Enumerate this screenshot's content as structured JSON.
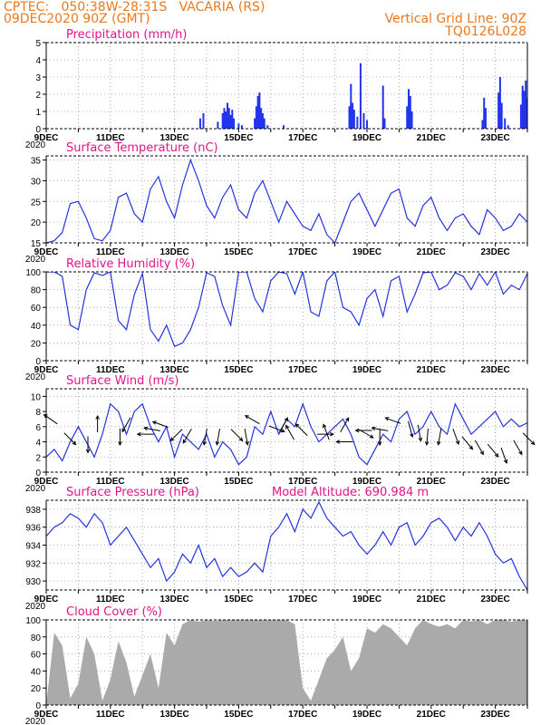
{
  "header": {
    "line1_left": "CPTEC:   050:38W-28:31S   VACARIA (RS)",
    "line2_left": "09DEC2020 90Z (GMT)",
    "line1_right": "Vertical Grid Line: 90Z",
    "line2_right": "TQ0126L028",
    "model_altitude": "Model Altitude: 690.984  m",
    "header_color": "#e8781e",
    "title_color": "#e0148c"
  },
  "x_axis": {
    "tick_labels": [
      "9DEC",
      "11DEC",
      "13DEC",
      "15DEC",
      "17DEC",
      "19DEC",
      "21DEC",
      "23DEC"
    ],
    "year_label": "2020",
    "days": [
      9,
      10,
      11,
      12,
      13,
      14,
      15,
      16,
      17,
      18,
      19,
      20,
      21,
      22,
      23,
      24
    ],
    "range_days": [
      9,
      24
    ]
  },
  "colors": {
    "line": "#2233dd",
    "bar": "#2233ee",
    "cloud": "#aaaaaa",
    "arrow": "#000000",
    "grid": "#999999"
  },
  "chart_data": [
    {
      "type": "bar",
      "title": "Precipitation (mm/h)",
      "ylim": [
        0,
        5
      ],
      "yticks": [
        0,
        1,
        2,
        3,
        4,
        5
      ],
      "grid": true,
      "x": [
        13.8,
        13.9,
        14.35,
        14.5,
        14.55,
        14.6,
        14.65,
        14.7,
        14.75,
        14.8,
        14.85,
        15.0,
        15.1,
        15.5,
        15.55,
        15.6,
        15.65,
        15.7,
        15.75,
        15.8,
        15.9,
        16.4,
        18.45,
        18.5,
        18.55,
        18.6,
        18.7,
        18.8,
        18.9,
        19.0,
        19.5,
        19.55,
        20.25,
        20.3,
        20.35,
        20.4,
        22.6,
        22.65,
        22.7,
        23.1,
        23.15,
        23.2,
        23.3,
        23.4,
        23.8,
        23.85,
        23.9,
        23.95,
        24.0,
        24.05
      ],
      "values": [
        0.6,
        0.9,
        0.4,
        0.9,
        1.2,
        1.0,
        1.5,
        1.2,
        0.8,
        1.1,
        0.6,
        0.3,
        0.2,
        0.6,
        1.3,
        1.9,
        2.1,
        1.2,
        0.9,
        0.6,
        0.2,
        0.2,
        1.3,
        2.6,
        1.5,
        1.1,
        0.7,
        3.8,
        0.9,
        0.5,
        2.5,
        0.6,
        1.3,
        2.3,
        1.9,
        1.0,
        0.5,
        1.8,
        1.2,
        2.1,
        3.0,
        1.5,
        0.6,
        0.2,
        1.4,
        2.5,
        2.2,
        2.8,
        1.8,
        1.0
      ]
    },
    {
      "type": "line",
      "title": "Surface Temperature (nC)",
      "ylim": [
        15,
        36
      ],
      "yticks": [
        15,
        20,
        25,
        30,
        35
      ],
      "grid": true,
      "x": [
        9,
        9.25,
        9.5,
        9.75,
        10,
        10.25,
        10.5,
        10.75,
        11,
        11.25,
        11.5,
        11.75,
        12,
        12.25,
        12.5,
        12.75,
        13,
        13.25,
        13.5,
        13.75,
        14,
        14.25,
        14.5,
        14.75,
        15,
        15.25,
        15.5,
        15.75,
        16,
        16.25,
        16.5,
        16.75,
        17,
        17.25,
        17.5,
        17.75,
        18,
        18.25,
        18.5,
        18.75,
        19,
        19.25,
        19.5,
        19.75,
        20,
        20.25,
        20.5,
        20.75,
        21,
        21.25,
        21.5,
        21.75,
        22,
        22.25,
        22.5,
        22.75,
        23,
        23.25,
        23.5,
        23.75,
        24
      ],
      "values": [
        15,
        15.5,
        17.5,
        24.5,
        25,
        21,
        16,
        15.5,
        18,
        26,
        27,
        22,
        20,
        28,
        31,
        25,
        21,
        29,
        35,
        30,
        24,
        21,
        26,
        29,
        23,
        21,
        27,
        30,
        25,
        20,
        25,
        22,
        19,
        18,
        22,
        17,
        15,
        20,
        25,
        27,
        23,
        19,
        23,
        27,
        28,
        21,
        19,
        24,
        26,
        21,
        18,
        21,
        22,
        19,
        17,
        23,
        21,
        18,
        19,
        22,
        20
      ]
    },
    {
      "type": "line",
      "title": "Relative Humidity (%)",
      "ylim": [
        0,
        100
      ],
      "yticks": [
        0,
        20,
        40,
        60,
        80,
        100
      ],
      "grid": true,
      "x": [
        9,
        9.25,
        9.5,
        9.75,
        10,
        10.25,
        10.5,
        10.75,
        11,
        11.25,
        11.5,
        11.75,
        12,
        12.25,
        12.5,
        12.75,
        13,
        13.25,
        13.5,
        13.75,
        14,
        14.25,
        14.5,
        14.75,
        15,
        15.25,
        15.5,
        15.75,
        16,
        16.25,
        16.5,
        16.75,
        17,
        17.25,
        17.5,
        17.75,
        18,
        18.25,
        18.5,
        18.75,
        19,
        19.25,
        19.5,
        19.75,
        20,
        20.25,
        20.5,
        20.75,
        21,
        21.25,
        21.5,
        21.75,
        22,
        22.25,
        22.5,
        22.75,
        23,
        23.25,
        23.5,
        23.75,
        24
      ],
      "values": [
        100,
        100,
        95,
        40,
        35,
        80,
        99,
        96,
        100,
        45,
        35,
        75,
        98,
        35,
        22,
        40,
        16,
        20,
        35,
        60,
        99,
        95,
        62,
        40,
        100,
        100,
        70,
        55,
        90,
        100,
        98,
        75,
        100,
        55,
        50,
        90,
        100,
        60,
        55,
        40,
        70,
        80,
        50,
        90,
        95,
        55,
        75,
        99,
        100,
        80,
        85,
        99,
        95,
        80,
        98,
        85,
        100,
        75,
        85,
        80,
        98
      ]
    },
    {
      "type": "line",
      "title": "Surface Wind (m/s)",
      "ylim": [
        0,
        11
      ],
      "yticks": [
        0,
        2,
        4,
        6,
        8,
        10
      ],
      "grid": true,
      "x": [
        9,
        9.25,
        9.5,
        9.75,
        10,
        10.25,
        10.5,
        10.75,
        11,
        11.25,
        11.5,
        11.75,
        12,
        12.25,
        12.5,
        12.75,
        13,
        13.25,
        13.5,
        13.75,
        14,
        14.25,
        14.5,
        14.75,
        15,
        15.25,
        15.5,
        15.75,
        16,
        16.25,
        16.5,
        16.75,
        17,
        17.25,
        17.5,
        17.75,
        18,
        18.25,
        18.5,
        18.75,
        19,
        19.25,
        19.5,
        19.75,
        20,
        20.25,
        20.5,
        20.75,
        21,
        21.25,
        21.5,
        21.75,
        22,
        22.25,
        22.5,
        22.75,
        23,
        23.25,
        23.5,
        23.75,
        24
      ],
      "values": [
        2,
        3,
        1.5,
        4,
        6,
        4,
        2,
        5,
        9,
        8,
        5,
        8,
        9,
        6,
        4,
        6,
        2,
        5,
        4,
        3,
        5,
        2,
        4,
        3,
        1,
        2,
        6,
        5,
        8,
        5,
        7,
        6,
        9,
        6,
        4,
        5,
        6,
        7,
        5,
        2,
        1,
        3,
        5,
        4,
        7,
        8,
        5,
        6,
        8,
        6,
        5,
        9,
        7,
        5,
        6,
        7,
        8,
        6,
        7,
        6,
        6.5
      ],
      "wind_arrows": [
        {
          "day": 9.3,
          "speed": 6.5,
          "dir": 215
        },
        {
          "day": 9.6,
          "speed": 5.0,
          "dir": 45
        },
        {
          "day": 10.3,
          "speed": 4.5,
          "dir": 90
        },
        {
          "day": 10.6,
          "speed": 5.5,
          "dir": 270
        },
        {
          "day": 11.3,
          "speed": 5.5,
          "dir": 90
        },
        {
          "day": 11.6,
          "speed": 7.0,
          "dir": 120
        },
        {
          "day": 12.3,
          "speed": 5.0,
          "dir": 180
        },
        {
          "day": 12.5,
          "speed": 5.5,
          "dir": 190
        },
        {
          "day": 12.75,
          "speed": 6.0,
          "dir": 200
        },
        {
          "day": 13.2,
          "speed": 5.5,
          "dir": 135
        },
        {
          "day": 13.5,
          "speed": 5.5,
          "dir": 120
        },
        {
          "day": 14.0,
          "speed": 5.5,
          "dir": 100
        },
        {
          "day": 14.4,
          "speed": 5.5,
          "dir": 100
        },
        {
          "day": 14.8,
          "speed": 5.5,
          "dir": 45
        },
        {
          "day": 15.2,
          "speed": 5.5,
          "dir": 80
        },
        {
          "day": 15.6,
          "speed": 6.5,
          "dir": 210
        },
        {
          "day": 16.0,
          "speed": 6.0,
          "dir": 20
        },
        {
          "day": 16.3,
          "speed": 5.5,
          "dir": 300
        },
        {
          "day": 16.7,
          "speed": 4.5,
          "dir": 240
        },
        {
          "day": 17.1,
          "speed": 5.0,
          "dir": 225
        },
        {
          "day": 17.5,
          "speed": 5.0,
          "dir": 0
        },
        {
          "day": 17.8,
          "speed": 4.5,
          "dir": 250
        },
        {
          "day": 18.2,
          "speed": 5.5,
          "dir": 300
        },
        {
          "day": 18.5,
          "speed": 4.0,
          "dir": 180
        },
        {
          "day": 18.8,
          "speed": 5.5,
          "dir": 30
        },
        {
          "day": 19.1,
          "speed": 5.5,
          "dir": 180
        },
        {
          "day": 19.4,
          "speed": 5.5,
          "dir": 90
        },
        {
          "day": 19.6,
          "speed": 5.5,
          "dir": 190
        },
        {
          "day": 20.0,
          "speed": 6.5,
          "dir": 200
        },
        {
          "day": 20.3,
          "speed": 6.5,
          "dir": 75
        },
        {
          "day": 20.6,
          "speed": 6.0,
          "dir": 80
        },
        {
          "day": 20.9,
          "speed": 5.5,
          "dir": 95
        },
        {
          "day": 21.3,
          "speed": 5.5,
          "dir": 100
        },
        {
          "day": 21.7,
          "speed": 5.5,
          "dir": 70
        },
        {
          "day": 22.0,
          "speed": 4.5,
          "dir": 50
        },
        {
          "day": 22.4,
          "speed": 4.0,
          "dir": 60
        },
        {
          "day": 22.8,
          "speed": 3.5,
          "dir": 50
        },
        {
          "day": 23.2,
          "speed": 3.0,
          "dir": 70
        },
        {
          "day": 23.6,
          "speed": 4.0,
          "dir": 60
        },
        {
          "day": 23.9,
          "speed": 5.0,
          "dir": 45
        }
      ]
    },
    {
      "type": "line",
      "title": "Surface Pressure (hPa)",
      "ylim": [
        929,
        939
      ],
      "yticks": [
        930,
        932,
        934,
        936,
        938
      ],
      "grid": true,
      "x": [
        9,
        9.25,
        9.5,
        9.75,
        10,
        10.25,
        10.5,
        10.75,
        11,
        11.25,
        11.5,
        11.75,
        12,
        12.25,
        12.5,
        12.75,
        13,
        13.25,
        13.5,
        13.75,
        14,
        14.25,
        14.5,
        14.75,
        15,
        15.25,
        15.5,
        15.75,
        16,
        16.25,
        16.5,
        16.75,
        17,
        17.25,
        17.5,
        17.75,
        18,
        18.25,
        18.5,
        18.75,
        19,
        19.25,
        19.5,
        19.75,
        20,
        20.25,
        20.5,
        20.75,
        21,
        21.25,
        21.5,
        21.75,
        22,
        22.25,
        22.5,
        22.75,
        23,
        23.25,
        23.5,
        23.75,
        24
      ],
      "values": [
        935,
        936,
        936.5,
        937.5,
        937,
        936,
        937.5,
        936.5,
        934,
        935,
        936,
        934.5,
        933,
        931.5,
        932.5,
        930,
        931,
        933,
        932,
        934,
        931.5,
        932.5,
        930.5,
        931.5,
        930.5,
        931,
        932,
        931,
        935,
        936,
        937.5,
        935.5,
        938,
        937,
        938.8,
        937,
        936,
        935,
        935.5,
        934,
        933,
        934,
        935.5,
        934,
        936,
        936.5,
        934,
        935,
        936.5,
        937,
        936,
        934.5,
        936,
        935,
        936.5,
        935,
        933,
        932,
        932.5,
        930.5,
        929
      ]
    },
    {
      "type": "area",
      "title": "Cloud Cover (%)",
      "ylim": [
        0,
        100
      ],
      "yticks": [
        0,
        20,
        40,
        60,
        80,
        100
      ],
      "grid": true,
      "x": [
        9,
        9.25,
        9.5,
        9.75,
        10,
        10.25,
        10.5,
        10.75,
        11,
        11.25,
        11.5,
        11.75,
        12,
        12.25,
        12.5,
        12.75,
        13,
        13.25,
        13.5,
        13.75,
        14,
        14.25,
        14.5,
        14.75,
        15,
        15.25,
        15.5,
        15.75,
        16,
        16.25,
        16.5,
        16.75,
        17,
        17.25,
        17.5,
        17.75,
        18,
        18.25,
        18.5,
        18.75,
        19,
        19.25,
        19.5,
        19.75,
        20,
        20.25,
        20.5,
        20.75,
        21,
        21.25,
        21.5,
        21.75,
        22,
        22.25,
        22.5,
        22.75,
        23,
        23.25,
        23.5,
        23.75,
        24
      ],
      "values": [
        0,
        85,
        70,
        8,
        25,
        80,
        60,
        5,
        30,
        75,
        50,
        10,
        35,
        60,
        20,
        85,
        70,
        95,
        100,
        98,
        100,
        99,
        100,
        100,
        100,
        100,
        100,
        100,
        100,
        100,
        100,
        95,
        20,
        5,
        30,
        55,
        65,
        80,
        40,
        55,
        90,
        85,
        95,
        90,
        80,
        70,
        90,
        100,
        95,
        92,
        95,
        90,
        100,
        98,
        100,
        95,
        100,
        100,
        98,
        100,
        100
      ]
    }
  ]
}
